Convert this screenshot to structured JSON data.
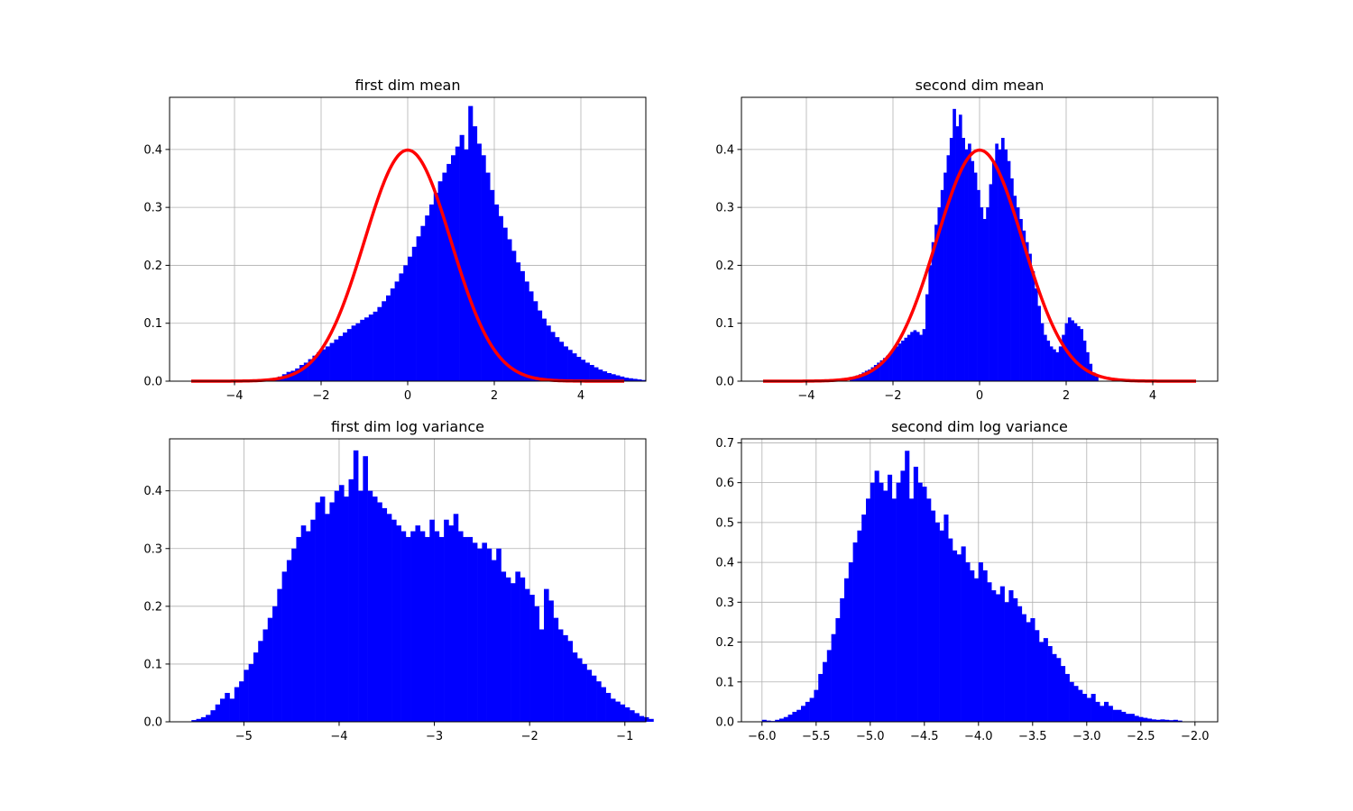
{
  "chart_data": [
    {
      "type": "bar",
      "title": "first dim mean",
      "xlabel": "",
      "ylabel": "",
      "xlim": [
        -5.5,
        5.5
      ],
      "ylim": [
        0,
        0.49
      ],
      "xticks": [
        -4,
        -2,
        0,
        2,
        4
      ],
      "yticks": [
        0.0,
        0.1,
        0.2,
        0.3,
        0.4
      ],
      "xtick_labels": [
        "−4",
        "−2",
        "0",
        "2",
        "4"
      ],
      "ytick_labels": [
        "0.0",
        "0.1",
        "0.2",
        "0.3",
        "0.4"
      ],
      "grid": true,
      "bar_color": "#0000ff",
      "curve_color": "#ff0000",
      "hist": {
        "x_start": -3.3,
        "bin_width": 0.1,
        "values": [
          0.002,
          0.004,
          0.006,
          0.008,
          0.012,
          0.016,
          0.018,
          0.022,
          0.028,
          0.032,
          0.038,
          0.044,
          0.05,
          0.055,
          0.06,
          0.066,
          0.072,
          0.078,
          0.084,
          0.09,
          0.096,
          0.1,
          0.106,
          0.11,
          0.115,
          0.12,
          0.128,
          0.138,
          0.148,
          0.16,
          0.172,
          0.186,
          0.2,
          0.215,
          0.232,
          0.25,
          0.268,
          0.286,
          0.305,
          0.325,
          0.345,
          0.36,
          0.375,
          0.39,
          0.405,
          0.425,
          0.4,
          0.475,
          0.44,
          0.41,
          0.39,
          0.36,
          0.33,
          0.305,
          0.285,
          0.265,
          0.245,
          0.225,
          0.205,
          0.19,
          0.172,
          0.155,
          0.138,
          0.122,
          0.108,
          0.096,
          0.085,
          0.076,
          0.068,
          0.06,
          0.054,
          0.048,
          0.042,
          0.037,
          0.032,
          0.028,
          0.024,
          0.02,
          0.017,
          0.014,
          0.012,
          0.01,
          0.008,
          0.006,
          0.005,
          0.004,
          0.003,
          0.002
        ]
      },
      "curve": {
        "kind": "normal_pdf",
        "mean": 0,
        "std": 1,
        "x_range": [
          -5,
          5
        ]
      }
    },
    {
      "type": "bar",
      "title": "second dim mean",
      "xlabel": "",
      "ylabel": "",
      "xlim": [
        -5.5,
        5.5
      ],
      "ylim": [
        0,
        0.49
      ],
      "xticks": [
        -4,
        -2,
        0,
        2,
        4
      ],
      "yticks": [
        0.0,
        0.1,
        0.2,
        0.3,
        0.4
      ],
      "xtick_labels": [
        "−4",
        "−2",
        "0",
        "2",
        "4"
      ],
      "ytick_labels": [
        "0.0",
        "0.1",
        "0.2",
        "0.3",
        "0.4"
      ],
      "grid": true,
      "bar_color": "#0000ff",
      "curve_color": "#ff0000",
      "hist": {
        "x_start": -3.0,
        "bin_width": 0.07,
        "values": [
          0.005,
          0.008,
          0.01,
          0.012,
          0.015,
          0.018,
          0.02,
          0.024,
          0.028,
          0.032,
          0.036,
          0.04,
          0.044,
          0.048,
          0.055,
          0.06,
          0.065,
          0.07,
          0.075,
          0.08,
          0.085,
          0.088,
          0.085,
          0.08,
          0.09,
          0.15,
          0.2,
          0.24,
          0.27,
          0.3,
          0.33,
          0.36,
          0.39,
          0.42,
          0.47,
          0.44,
          0.46,
          0.42,
          0.4,
          0.41,
          0.38,
          0.36,
          0.33,
          0.3,
          0.28,
          0.3,
          0.34,
          0.38,
          0.41,
          0.4,
          0.42,
          0.4,
          0.38,
          0.35,
          0.32,
          0.3,
          0.28,
          0.26,
          0.24,
          0.22,
          0.19,
          0.16,
          0.13,
          0.1,
          0.08,
          0.07,
          0.06,
          0.055,
          0.05,
          0.06,
          0.08,
          0.1,
          0.11,
          0.105,
          0.1,
          0.095,
          0.09,
          0.07,
          0.05,
          0.03,
          0.015,
          0.008
        ]
      },
      "curve": {
        "kind": "normal_pdf",
        "mean": 0,
        "std": 1,
        "x_range": [
          -5,
          5
        ]
      }
    },
    {
      "type": "bar",
      "title": "first dim log variance",
      "xlabel": "",
      "ylabel": "",
      "xlim": [
        -5.78,
        -0.78
      ],
      "ylim": [
        0,
        0.49
      ],
      "xticks": [
        -5,
        -4,
        -3,
        -2,
        -1
      ],
      "yticks": [
        0.0,
        0.1,
        0.2,
        0.3,
        0.4
      ],
      "xtick_labels": [
        "−5",
        "−4",
        "−3",
        "−2",
        "−1"
      ],
      "ytick_labels": [
        "0.0",
        "0.1",
        "0.2",
        "0.3",
        "0.4"
      ],
      "grid": true,
      "bar_color": "#0000ff",
      "hist": {
        "x_start": -5.55,
        "bin_width": 0.05,
        "values": [
          0.003,
          0.005,
          0.008,
          0.012,
          0.02,
          0.03,
          0.04,
          0.05,
          0.04,
          0.06,
          0.07,
          0.09,
          0.1,
          0.12,
          0.14,
          0.16,
          0.18,
          0.2,
          0.23,
          0.26,
          0.28,
          0.3,
          0.32,
          0.34,
          0.33,
          0.35,
          0.38,
          0.39,
          0.36,
          0.38,
          0.4,
          0.41,
          0.39,
          0.42,
          0.47,
          0.4,
          0.46,
          0.4,
          0.39,
          0.38,
          0.37,
          0.36,
          0.35,
          0.34,
          0.33,
          0.32,
          0.33,
          0.34,
          0.33,
          0.32,
          0.35,
          0.33,
          0.32,
          0.35,
          0.34,
          0.36,
          0.33,
          0.32,
          0.32,
          0.31,
          0.3,
          0.31,
          0.3,
          0.28,
          0.3,
          0.26,
          0.25,
          0.24,
          0.26,
          0.25,
          0.23,
          0.22,
          0.2,
          0.16,
          0.23,
          0.21,
          0.18,
          0.16,
          0.15,
          0.14,
          0.12,
          0.11,
          0.1,
          0.09,
          0.08,
          0.07,
          0.06,
          0.05,
          0.04,
          0.035,
          0.03,
          0.025,
          0.02,
          0.015,
          0.01,
          0.008,
          0.005
        ]
      }
    },
    {
      "type": "bar",
      "title": "second dim log variance",
      "xlabel": "",
      "ylabel": "",
      "xlim": [
        -6.19,
        -1.79
      ],
      "ylim": [
        0,
        0.71
      ],
      "xticks": [
        -6.0,
        -5.5,
        -5.0,
        -4.5,
        -4.0,
        -3.5,
        -3.0,
        -2.5,
        -2.0
      ],
      "yticks": [
        0.0,
        0.1,
        0.2,
        0.3,
        0.4,
        0.5,
        0.6,
        0.7
      ],
      "xtick_labels": [
        "−6.0",
        "−5.5",
        "−5.0",
        "−4.5",
        "−4.0",
        "−3.5",
        "−3.0",
        "−2.5",
        "−2.0"
      ],
      "ytick_labels": [
        "0.0",
        "0.1",
        "0.2",
        "0.3",
        "0.4",
        "0.5",
        "0.6",
        "0.7"
      ],
      "grid": true,
      "bar_color": "#0000ff",
      "hist": {
        "x_start": -6.0,
        "bin_width": 0.04,
        "values": [
          0.005,
          0.003,
          0.002,
          0.005,
          0.008,
          0.012,
          0.018,
          0.025,
          0.03,
          0.04,
          0.05,
          0.06,
          0.08,
          0.12,
          0.15,
          0.18,
          0.22,
          0.26,
          0.31,
          0.36,
          0.4,
          0.45,
          0.48,
          0.52,
          0.56,
          0.6,
          0.63,
          0.6,
          0.58,
          0.62,
          0.56,
          0.6,
          0.63,
          0.68,
          0.56,
          0.64,
          0.6,
          0.59,
          0.56,
          0.53,
          0.5,
          0.48,
          0.52,
          0.46,
          0.43,
          0.42,
          0.44,
          0.4,
          0.38,
          0.36,
          0.4,
          0.38,
          0.35,
          0.33,
          0.32,
          0.34,
          0.3,
          0.33,
          0.31,
          0.29,
          0.27,
          0.25,
          0.26,
          0.23,
          0.2,
          0.21,
          0.19,
          0.17,
          0.16,
          0.14,
          0.12,
          0.1,
          0.09,
          0.08,
          0.07,
          0.06,
          0.07,
          0.05,
          0.04,
          0.05,
          0.04,
          0.03,
          0.03,
          0.025,
          0.02,
          0.02,
          0.015,
          0.012,
          0.01,
          0.008,
          0.006,
          0.005,
          0.006,
          0.005,
          0.004,
          0.005,
          0.003
        ]
      }
    }
  ]
}
